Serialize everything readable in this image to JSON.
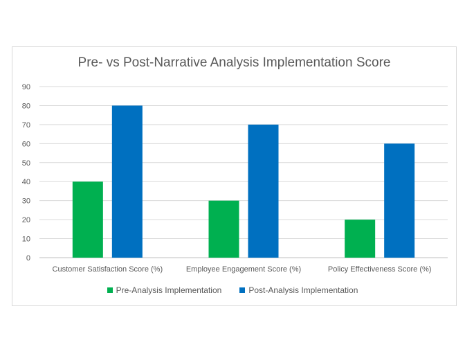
{
  "chart_data": {
    "type": "bar",
    "title": "Pre- vs Post-Narrative Analysis Implementation Score",
    "categories": [
      "Customer Satisfaction Score (%)",
      "Employee Engagement Score (%)",
      "Policy Effectiveness Score (%)"
    ],
    "series": [
      {
        "name": "Pre-Analysis Implementation",
        "values": [
          40,
          30,
          20
        ],
        "color": "#00B050"
      },
      {
        "name": "Post-Analysis Implementation",
        "values": [
          80,
          70,
          60
        ],
        "color": "#0070C0"
      }
    ],
    "xlabel": "",
    "ylabel": "",
    "ylim": [
      0,
      90
    ],
    "yticks": [
      0,
      10,
      20,
      30,
      40,
      50,
      60,
      70,
      80,
      90
    ],
    "grid": true,
    "legend": "bottom"
  }
}
